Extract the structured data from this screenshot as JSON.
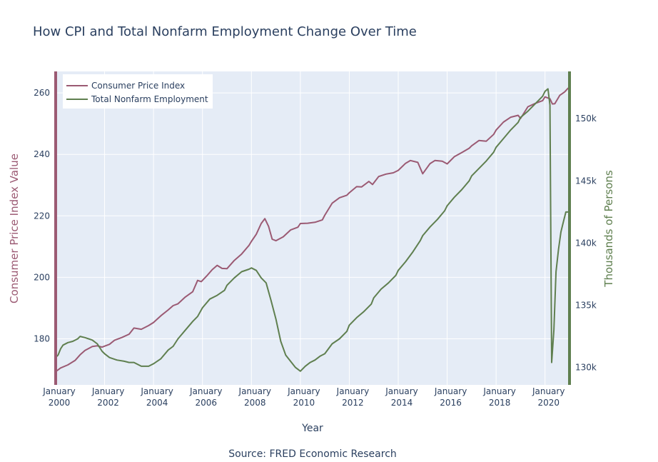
{
  "chart_data": {
    "type": "line",
    "title": "How CPI and Total Nonfarm Employment Change Over Time",
    "xlabel": "Year",
    "ylabel_left": "Consumer Price Index Value",
    "ylabel_right": "Thousands of Persons",
    "source": "Source: FRED Economic Research",
    "legend_position": "top-left",
    "grid": true,
    "xlim": [
      2000.0,
      2021.0
    ],
    "ylim_left": [
      165,
      267
    ],
    "ylim_right": [
      128600,
      153800
    ],
    "x_ticks": [
      {
        "value": 2000,
        "line1": "January",
        "line2": "2000"
      },
      {
        "value": 2002,
        "line1": "January",
        "line2": "2002"
      },
      {
        "value": 2004,
        "line1": "January",
        "line2": "2004"
      },
      {
        "value": 2006,
        "line1": "January",
        "line2": "2006"
      },
      {
        "value": 2008,
        "line1": "January",
        "line2": "2008"
      },
      {
        "value": 2010,
        "line1": "January",
        "line2": "2010"
      },
      {
        "value": 2012,
        "line1": "January",
        "line2": "2012"
      },
      {
        "value": 2014,
        "line1": "January",
        "line2": "2014"
      },
      {
        "value": 2016,
        "line1": "January",
        "line2": "2016"
      },
      {
        "value": 2018,
        "line1": "January",
        "line2": "2018"
      },
      {
        "value": 2020,
        "line1": "January",
        "line2": "2020"
      }
    ],
    "y_left_ticks": [
      {
        "value": 180,
        "label": "180"
      },
      {
        "value": 200,
        "label": "200"
      },
      {
        "value": 220,
        "label": "220"
      },
      {
        "value": 240,
        "label": "240"
      },
      {
        "value": 260,
        "label": "260"
      }
    ],
    "y_right_ticks": [
      {
        "value": 130000,
        "label": "130k"
      },
      {
        "value": 135000,
        "label": "135k"
      },
      {
        "value": 140000,
        "label": "140k"
      },
      {
        "value": 145000,
        "label": "145k"
      },
      {
        "value": 150000,
        "label": "150k"
      }
    ],
    "colors": {
      "cpi": "#9b5a73",
      "employment": "#5f7f4f",
      "plot_bg": "#e5ecf6",
      "grid": "#ffffff",
      "text": "#2a3f5f"
    },
    "series": [
      {
        "name": "Consumer Price Index",
        "axis": "left",
        "points": [
          [
            2000.0,
            169.3
          ],
          [
            2000.2,
            170.5
          ],
          [
            2000.5,
            171.5
          ],
          [
            2000.8,
            173.0
          ],
          [
            2001.0,
            174.8
          ],
          [
            2001.2,
            176.2
          ],
          [
            2001.5,
            177.5
          ],
          [
            2001.7,
            177.7
          ],
          [
            2001.9,
            177.3
          ],
          [
            2002.2,
            178.2
          ],
          [
            2002.4,
            179.5
          ],
          [
            2002.7,
            180.4
          ],
          [
            2003.0,
            181.5
          ],
          [
            2003.2,
            183.5
          ],
          [
            2003.5,
            183.1
          ],
          [
            2003.8,
            184.3
          ],
          [
            2004.0,
            185.3
          ],
          [
            2004.3,
            187.5
          ],
          [
            2004.6,
            189.4
          ],
          [
            2004.8,
            190.8
          ],
          [
            2005.0,
            191.4
          ],
          [
            2005.3,
            193.6
          ],
          [
            2005.6,
            195.3
          ],
          [
            2005.8,
            199.0
          ],
          [
            2005.95,
            198.6
          ],
          [
            2006.2,
            200.7
          ],
          [
            2006.4,
            202.5
          ],
          [
            2006.6,
            203.9
          ],
          [
            2006.8,
            202.9
          ],
          [
            2007.0,
            202.8
          ],
          [
            2007.3,
            205.5
          ],
          [
            2007.6,
            207.6
          ],
          [
            2007.9,
            210.4
          ],
          [
            2008.0,
            211.7
          ],
          [
            2008.2,
            214.0
          ],
          [
            2008.4,
            217.5
          ],
          [
            2008.55,
            219.1
          ],
          [
            2008.7,
            216.6
          ],
          [
            2008.85,
            212.4
          ],
          [
            2009.0,
            211.9
          ],
          [
            2009.3,
            213.2
          ],
          [
            2009.6,
            215.4
          ],
          [
            2009.9,
            216.3
          ],
          [
            2010.0,
            217.5
          ],
          [
            2010.3,
            217.6
          ],
          [
            2010.6,
            217.9
          ],
          [
            2010.9,
            218.7
          ],
          [
            2011.0,
            220.2
          ],
          [
            2011.3,
            224.1
          ],
          [
            2011.6,
            225.9
          ],
          [
            2011.9,
            226.7
          ],
          [
            2012.0,
            227.5
          ],
          [
            2012.3,
            229.5
          ],
          [
            2012.5,
            229.4
          ],
          [
            2012.8,
            231.2
          ],
          [
            2012.95,
            230.2
          ],
          [
            2013.2,
            232.8
          ],
          [
            2013.5,
            233.6
          ],
          [
            2013.8,
            234.0
          ],
          [
            2014.0,
            234.8
          ],
          [
            2014.3,
            237.1
          ],
          [
            2014.5,
            238.0
          ],
          [
            2014.8,
            237.4
          ],
          [
            2015.0,
            233.7
          ],
          [
            2015.3,
            237.0
          ],
          [
            2015.5,
            238.0
          ],
          [
            2015.8,
            237.8
          ],
          [
            2016.0,
            236.9
          ],
          [
            2016.3,
            239.3
          ],
          [
            2016.6,
            240.6
          ],
          [
            2016.9,
            242.0
          ],
          [
            2017.0,
            242.8
          ],
          [
            2017.3,
            244.5
          ],
          [
            2017.6,
            244.3
          ],
          [
            2017.9,
            246.5
          ],
          [
            2018.0,
            247.9
          ],
          [
            2018.3,
            250.5
          ],
          [
            2018.6,
            252.1
          ],
          [
            2018.9,
            252.7
          ],
          [
            2019.0,
            251.7
          ],
          [
            2019.3,
            255.5
          ],
          [
            2019.6,
            256.6
          ],
          [
            2019.9,
            257.5
          ],
          [
            2020.0,
            258.7
          ],
          [
            2020.2,
            258.1
          ],
          [
            2020.3,
            256.4
          ],
          [
            2020.4,
            256.5
          ],
          [
            2020.6,
            259.2
          ],
          [
            2020.8,
            260.3
          ],
          [
            2020.95,
            261.6
          ]
        ]
      },
      {
        "name": "Total Nonfarm Employment",
        "axis": "right",
        "points": [
          [
            2000.0,
            130800
          ],
          [
            2000.1,
            131000
          ],
          [
            2000.2,
            131500
          ],
          [
            2000.3,
            131800
          ],
          [
            2000.5,
            132000
          ],
          [
            2000.7,
            132100
          ],
          [
            2000.9,
            132300
          ],
          [
            2001.0,
            132500
          ],
          [
            2001.2,
            132400
          ],
          [
            2001.5,
            132200
          ],
          [
            2001.7,
            131900
          ],
          [
            2001.9,
            131300
          ],
          [
            2002.0,
            131100
          ],
          [
            2002.2,
            130800
          ],
          [
            2002.5,
            130600
          ],
          [
            2002.8,
            130500
          ],
          [
            2003.0,
            130400
          ],
          [
            2003.2,
            130400
          ],
          [
            2003.5,
            130100
          ],
          [
            2003.8,
            130100
          ],
          [
            2004.0,
            130300
          ],
          [
            2004.3,
            130700
          ],
          [
            2004.6,
            131400
          ],
          [
            2004.8,
            131700
          ],
          [
            2005.0,
            132300
          ],
          [
            2005.3,
            133000
          ],
          [
            2005.6,
            133700
          ],
          [
            2005.8,
            134100
          ],
          [
            2006.0,
            134800
          ],
          [
            2006.3,
            135500
          ],
          [
            2006.6,
            135800
          ],
          [
            2006.9,
            136200
          ],
          [
            2007.0,
            136600
          ],
          [
            2007.3,
            137200
          ],
          [
            2007.6,
            137700
          ],
          [
            2007.9,
            137900
          ],
          [
            2008.0,
            138000
          ],
          [
            2008.2,
            137800
          ],
          [
            2008.4,
            137200
          ],
          [
            2008.6,
            136800
          ],
          [
            2008.8,
            135400
          ],
          [
            2009.0,
            133900
          ],
          [
            2009.2,
            132100
          ],
          [
            2009.4,
            131000
          ],
          [
            2009.6,
            130500
          ],
          [
            2009.8,
            130000
          ],
          [
            2010.0,
            129700
          ],
          [
            2010.2,
            130100
          ],
          [
            2010.4,
            130400
          ],
          [
            2010.6,
            130600
          ],
          [
            2010.8,
            130900
          ],
          [
            2011.0,
            131100
          ],
          [
            2011.3,
            131900
          ],
          [
            2011.6,
            132300
          ],
          [
            2011.9,
            132900
          ],
          [
            2012.0,
            133400
          ],
          [
            2012.3,
            134000
          ],
          [
            2012.6,
            134500
          ],
          [
            2012.9,
            135100
          ],
          [
            2013.0,
            135600
          ],
          [
            2013.3,
            136300
          ],
          [
            2013.6,
            136800
          ],
          [
            2013.9,
            137400
          ],
          [
            2014.0,
            137800
          ],
          [
            2014.3,
            138500
          ],
          [
            2014.6,
            139300
          ],
          [
            2014.9,
            140200
          ],
          [
            2015.0,
            140600
          ],
          [
            2015.3,
            141300
          ],
          [
            2015.6,
            141900
          ],
          [
            2015.9,
            142600
          ],
          [
            2016.0,
            143000
          ],
          [
            2016.3,
            143700
          ],
          [
            2016.6,
            144300
          ],
          [
            2016.9,
            145000
          ],
          [
            2017.0,
            145400
          ],
          [
            2017.3,
            146000
          ],
          [
            2017.6,
            146600
          ],
          [
            2017.9,
            147300
          ],
          [
            2018.0,
            147700
          ],
          [
            2018.3,
            148400
          ],
          [
            2018.6,
            149100
          ],
          [
            2018.9,
            149700
          ],
          [
            2019.0,
            150100
          ],
          [
            2019.3,
            150600
          ],
          [
            2019.6,
            151200
          ],
          [
            2019.9,
            151800
          ],
          [
            2020.0,
            152200
          ],
          [
            2020.12,
            152400
          ],
          [
            2020.2,
            151100
          ],
          [
            2020.27,
            130400
          ],
          [
            2020.36,
            133000
          ],
          [
            2020.45,
            137700
          ],
          [
            2020.55,
            139500
          ],
          [
            2020.65,
            140900
          ],
          [
            2020.75,
            141700
          ],
          [
            2020.85,
            142500
          ],
          [
            2020.95,
            142500
          ]
        ]
      }
    ]
  }
}
